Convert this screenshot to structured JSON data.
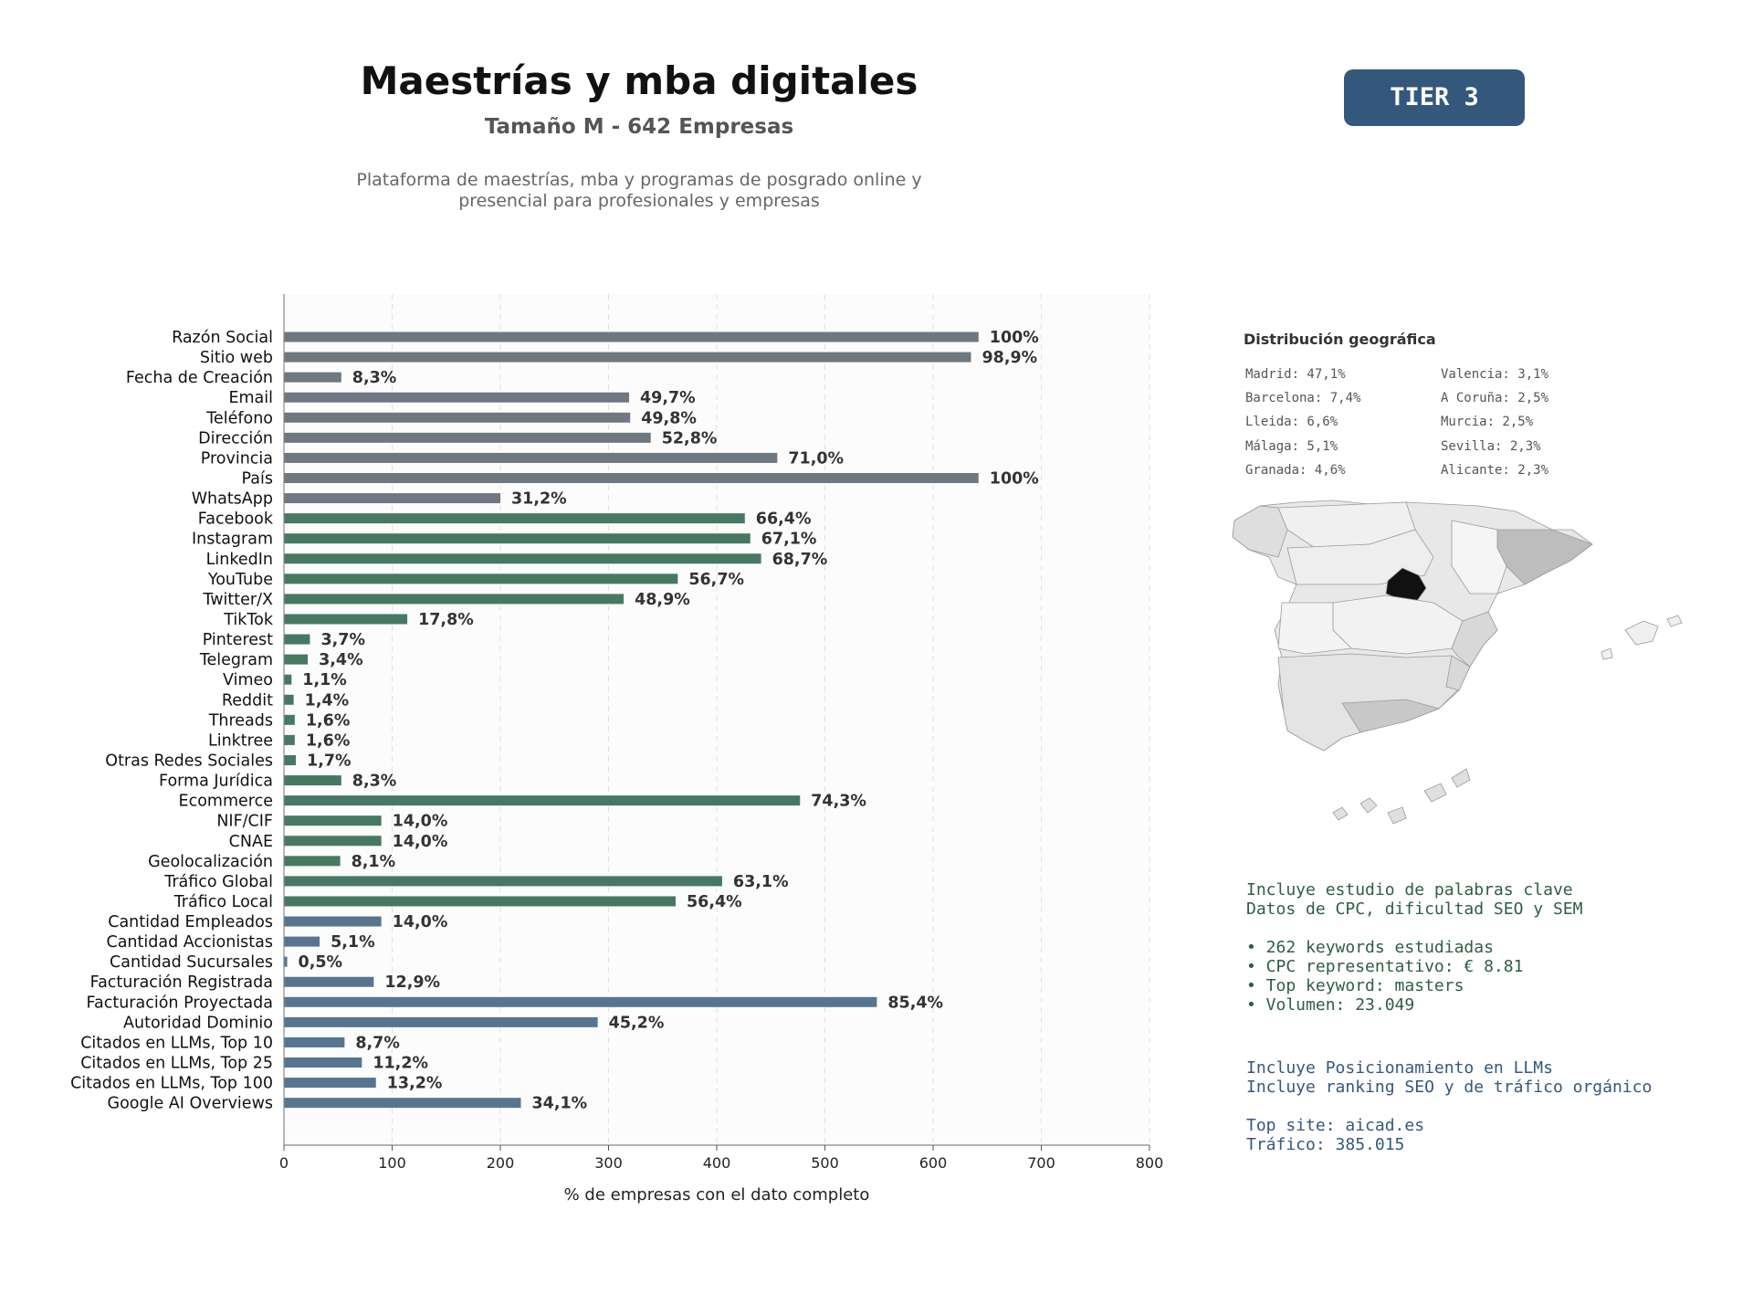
{
  "header": {
    "title": "Maestrías y mba digitales",
    "subtitle": "Tamaño M - 642 Empresas",
    "description_line1": "Plataforma de maestrías, mba y programas de posgrado online y",
    "description_line2": "presencial para profesionales y empresas"
  },
  "tier": {
    "label": "TIER 3",
    "color": "#34587c"
  },
  "chart_data": {
    "type": "bar",
    "orientation": "horizontal",
    "xlabel": "% de empresas con el dato completo",
    "xlim": [
      0,
      800
    ],
    "xticks": [
      0,
      100,
      200,
      300,
      400,
      500,
      600,
      700,
      800
    ],
    "grid": "x, dashed",
    "colors": {
      "basic": "#6f7780",
      "digital": "#477863",
      "financial": "#587590"
    },
    "bars": [
      {
        "label": "Razón Social",
        "value": 642,
        "pct": "100%",
        "group": "basic"
      },
      {
        "label": "Sitio web",
        "value": 635,
        "pct": "98,9%",
        "group": "basic"
      },
      {
        "label": "Fecha de Creación",
        "value": 53,
        "pct": "8,3%",
        "group": "basic"
      },
      {
        "label": "Email",
        "value": 319,
        "pct": "49,7%",
        "group": "basic"
      },
      {
        "label": "Teléfono",
        "value": 320,
        "pct": "49,8%",
        "group": "basic"
      },
      {
        "label": "Dirección",
        "value": 339,
        "pct": "52,8%",
        "group": "basic"
      },
      {
        "label": "Provincia",
        "value": 456,
        "pct": "71,0%",
        "group": "basic"
      },
      {
        "label": "País",
        "value": 642,
        "pct": "100%",
        "group": "basic"
      },
      {
        "label": "WhatsApp",
        "value": 200,
        "pct": "31,2%",
        "group": "basic"
      },
      {
        "label": "Facebook",
        "value": 426,
        "pct": "66,4%",
        "group": "digital"
      },
      {
        "label": "Instagram",
        "value": 431,
        "pct": "67,1%",
        "group": "digital"
      },
      {
        "label": "LinkedIn",
        "value": 441,
        "pct": "68,7%",
        "group": "digital"
      },
      {
        "label": "YouTube",
        "value": 364,
        "pct": "56,7%",
        "group": "digital"
      },
      {
        "label": "Twitter/X",
        "value": 314,
        "pct": "48,9%",
        "group": "digital"
      },
      {
        "label": "TikTok",
        "value": 114,
        "pct": "17,8%",
        "group": "digital"
      },
      {
        "label": "Pinterest",
        "value": 24,
        "pct": "3,7%",
        "group": "digital"
      },
      {
        "label": "Telegram",
        "value": 22,
        "pct": "3,4%",
        "group": "digital"
      },
      {
        "label": "Vimeo",
        "value": 7,
        "pct": "1,1%",
        "group": "digital"
      },
      {
        "label": "Reddit",
        "value": 9,
        "pct": "1,4%",
        "group": "digital"
      },
      {
        "label": "Threads",
        "value": 10,
        "pct": "1,6%",
        "group": "digital"
      },
      {
        "label": "Linktree",
        "value": 10,
        "pct": "1,6%",
        "group": "digital"
      },
      {
        "label": "Otras Redes Sociales",
        "value": 11,
        "pct": "1,7%",
        "group": "digital"
      },
      {
        "label": "Forma Jurídica",
        "value": 53,
        "pct": "8,3%",
        "group": "digital"
      },
      {
        "label": "Ecommerce",
        "value": 477,
        "pct": "74,3%",
        "group": "digital"
      },
      {
        "label": "NIF/CIF",
        "value": 90,
        "pct": "14,0%",
        "group": "digital"
      },
      {
        "label": "CNAE",
        "value": 90,
        "pct": "14,0%",
        "group": "digital"
      },
      {
        "label": "Geolocalización",
        "value": 52,
        "pct": "8,1%",
        "group": "digital"
      },
      {
        "label": "Tráfico Global",
        "value": 405,
        "pct": "63,1%",
        "group": "digital"
      },
      {
        "label": "Tráfico Local",
        "value": 362,
        "pct": "56,4%",
        "group": "digital"
      },
      {
        "label": "Cantidad Empleados",
        "value": 90,
        "pct": "14,0%",
        "group": "financial"
      },
      {
        "label": "Cantidad Accionistas",
        "value": 33,
        "pct": "5,1%",
        "group": "financial"
      },
      {
        "label": "Cantidad Sucursales",
        "value": 3,
        "pct": "0,5%",
        "group": "financial"
      },
      {
        "label": "Facturación Registrada",
        "value": 83,
        "pct": "12,9%",
        "group": "financial"
      },
      {
        "label": "Facturación Proyectada",
        "value": 548,
        "pct": "85,4%",
        "group": "financial"
      },
      {
        "label": "Autoridad Dominio",
        "value": 290,
        "pct": "45,2%",
        "group": "financial"
      },
      {
        "label": "Citados en LLMs, Top 10",
        "value": 56,
        "pct": "8,7%",
        "group": "financial"
      },
      {
        "label": "Citados en LLMs, Top 25",
        "value": 72,
        "pct": "11,2%",
        "group": "financial"
      },
      {
        "label": "Citados en LLMs, Top 100",
        "value": 85,
        "pct": "13,2%",
        "group": "financial"
      },
      {
        "label": "Google AI Overviews",
        "value": 219,
        "pct": "34,1%",
        "group": "financial"
      }
    ]
  },
  "geo": {
    "title": "Distribución geográfica",
    "items": [
      "Madrid: 47,1%",
      "Barcelona: 7,4%",
      "Lleida: 6,6%",
      "Málaga: 5,1%",
      "Granada: 4,6%",
      "Valencia: 3,1%",
      "A Coruña: 2,5%",
      "Murcia: 2,5%",
      "Sevilla: 2,3%",
      "Alicante: 2,3%"
    ]
  },
  "seo": {
    "line1": "Incluye estudio de palabras clave",
    "line2": "Datos de CPC, dificultad SEO y SEM",
    "bullet1": "• 262 keywords estudiadas",
    "bullet2": "• CPC representativo: € 8.81",
    "bullet3": "• Top keyword: masters",
    "bullet4": "• Volumen: 23.049"
  },
  "llm": {
    "line1": "Incluye Posicionamiento en LLMs",
    "line2": "Incluye ranking SEO y de tráfico orgánico",
    "site": "Top site: aicad.es",
    "traffic": "Tráfico: 385.015"
  }
}
